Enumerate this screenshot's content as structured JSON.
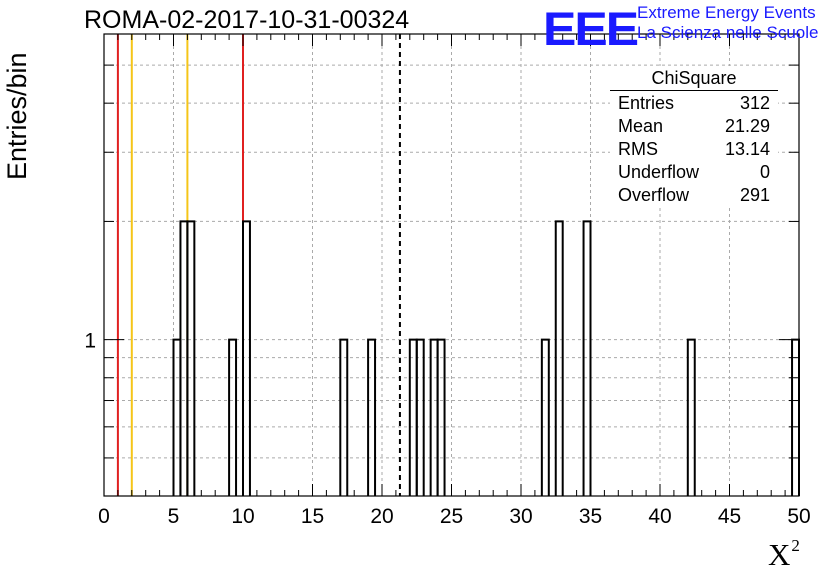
{
  "header": {
    "title": "ROMA-02-2017-10-31-00324",
    "logo_mark": "EEE",
    "logo_line1": "Extreme Energy Events",
    "logo_line2": "La Scienza nelle Scuole"
  },
  "stats_box": {
    "title": "ChiSquare",
    "rows": [
      {
        "label": "Entries",
        "value": "312"
      },
      {
        "label": "Mean",
        "value": "21.29"
      },
      {
        "label": "RMS",
        "value": "13.14"
      },
      {
        "label": "Underflow",
        "value": "0"
      },
      {
        "label": "Overflow",
        "value": "291"
      }
    ]
  },
  "chart_data": {
    "type": "bar",
    "title": "ROMA-02-2017-10-31-00324",
    "xlabel": "X",
    "xlabel_superscript": "2",
    "ylabel": "Entries/bin",
    "xlim": [
      0,
      50
    ],
    "ylim": [
      0.4,
      6
    ],
    "y_scale": "log",
    "grid": true,
    "x_ticks": [
      0,
      5,
      10,
      15,
      20,
      25,
      30,
      35,
      40,
      45,
      50
    ],
    "y_tick_labels": [
      {
        "value": 1,
        "label": "1"
      }
    ],
    "bin_width": 0.5,
    "bins": [
      {
        "x": 5.0,
        "count": 1
      },
      {
        "x": 5.5,
        "count": 2
      },
      {
        "x": 6.0,
        "count": 2
      },
      {
        "x": 9.0,
        "count": 1
      },
      {
        "x": 10.0,
        "count": 2
      },
      {
        "x": 17.0,
        "count": 1
      },
      {
        "x": 19.0,
        "count": 1
      },
      {
        "x": 22.0,
        "count": 1
      },
      {
        "x": 22.5,
        "count": 1
      },
      {
        "x": 23.5,
        "count": 1
      },
      {
        "x": 24.0,
        "count": 1
      },
      {
        "x": 31.5,
        "count": 1
      },
      {
        "x": 32.5,
        "count": 2
      },
      {
        "x": 34.5,
        "count": 2
      },
      {
        "x": 42.0,
        "count": 1
      },
      {
        "x": 49.5,
        "count": 1
      }
    ],
    "reference_lines": [
      {
        "x": 1.0,
        "color": "#e02020",
        "style": "solid"
      },
      {
        "x": 2.0,
        "color": "#f5c518",
        "style": "solid"
      },
      {
        "x": 6.0,
        "color": "#f5c518",
        "style": "solid"
      },
      {
        "x": 10.0,
        "color": "#e02020",
        "style": "solid"
      },
      {
        "x": 21.29,
        "color": "#000000",
        "style": "dashed"
      }
    ],
    "legend": "top-right stats box"
  }
}
